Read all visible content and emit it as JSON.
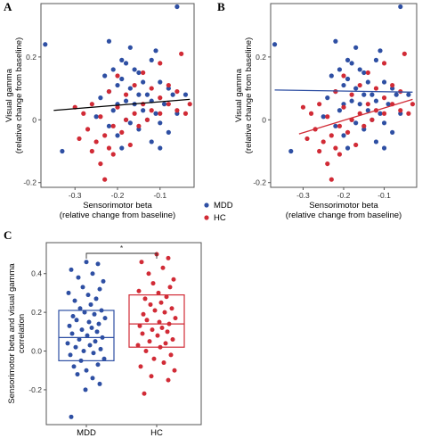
{
  "colors": {
    "MDD": "#2e4fa3",
    "HC": "#d12b36",
    "ink": "#000000",
    "tick": "#333333",
    "axis": "#555555"
  },
  "legend": {
    "items": [
      {
        "key": "MDD",
        "label": "MDD"
      },
      {
        "key": "HC",
        "label": "HC"
      }
    ]
  },
  "significance": "*",
  "chart_data": [
    {
      "id": "A",
      "type": "scatter",
      "panel_label": "A",
      "xlabel": [
        "Sensorimotor beta",
        "(relative change from baseline)"
      ],
      "ylabel": [
        "Visual gamma",
        "(relative change from baseline)"
      ],
      "xlim": [
        -0.38,
        -0.02
      ],
      "ylim": [
        -0.215,
        0.37
      ],
      "xticks": [
        -0.3,
        -0.2,
        -0.1
      ],
      "xtick_labels": [
        "-0.3",
        "-0.2",
        "-0.1"
      ],
      "yticks": [
        -0.2,
        0,
        0.2
      ],
      "ytick_labels": [
        "-0.2",
        "0",
        "0.2"
      ],
      "fit_lines": [
        {
          "name": "All",
          "color": "#000000",
          "x": [
            -0.35,
            -0.03
          ],
          "y": [
            0.03,
            0.065
          ]
        }
      ],
      "series": [
        {
          "name": "MDD",
          "points": [
            [
              -0.37,
              0.24
            ],
            [
              -0.33,
              -0.1
            ],
            [
              -0.06,
              0.36
            ],
            [
              -0.22,
              0.25
            ],
            [
              -0.17,
              0.23
            ],
            [
              -0.19,
              0.19
            ],
            [
              -0.18,
              0.18
            ],
            [
              -0.11,
              0.22
            ],
            [
              -0.12,
              0.19
            ],
            [
              -0.21,
              0.16
            ],
            [
              -0.16,
              0.16
            ],
            [
              -0.15,
              0.15
            ],
            [
              -0.23,
              0.14
            ],
            [
              -0.19,
              0.13
            ],
            [
              -0.14,
              0.12
            ],
            [
              -0.1,
              0.12
            ],
            [
              -0.2,
              0.11
            ],
            [
              -0.17,
              0.1
            ],
            [
              -0.08,
              0.1
            ],
            [
              -0.22,
              0.09
            ],
            [
              -0.15,
              0.08
            ],
            [
              -0.13,
              0.08
            ],
            [
              -0.07,
              0.08
            ],
            [
              -0.04,
              0.08
            ],
            [
              -0.24,
              0.07
            ],
            [
              -0.18,
              0.06
            ],
            [
              -0.12,
              0.06
            ],
            [
              -0.2,
              0.05
            ],
            [
              -0.16,
              0.05
            ],
            [
              -0.09,
              0.05
            ],
            [
              -0.21,
              0.03
            ],
            [
              -0.14,
              0.03
            ],
            [
              -0.11,
              0.02
            ],
            [
              -0.06,
              0.02
            ],
            [
              -0.25,
              0.01
            ],
            [
              -0.18,
              0.0
            ],
            [
              -0.13,
              0.0
            ],
            [
              -0.17,
              -0.01
            ],
            [
              -0.1,
              -0.01
            ],
            [
              -0.22,
              -0.02
            ],
            [
              -0.15,
              -0.03
            ],
            [
              -0.08,
              -0.04
            ],
            [
              -0.2,
              -0.05
            ],
            [
              -0.12,
              -0.07
            ],
            [
              -0.19,
              -0.09
            ],
            [
              -0.1,
              -0.09
            ]
          ]
        },
        {
          "name": "HC",
          "points": [
            [
              -0.05,
              0.21
            ],
            [
              -0.1,
              0.18
            ],
            [
              -0.14,
              0.15
            ],
            [
              -0.2,
              0.14
            ],
            [
              -0.08,
              0.11
            ],
            [
              -0.16,
              0.11
            ],
            [
              -0.12,
              0.1
            ],
            [
              -0.22,
              0.09
            ],
            [
              -0.06,
              0.09
            ],
            [
              -0.18,
              0.08
            ],
            [
              -0.1,
              0.07
            ],
            [
              -0.26,
              0.05
            ],
            [
              -0.14,
              0.05
            ],
            [
              -0.08,
              0.05
            ],
            [
              -0.03,
              0.05
            ],
            [
              -0.3,
              0.04
            ],
            [
              -0.2,
              0.04
            ],
            [
              -0.12,
              0.03
            ],
            [
              -0.06,
              0.03
            ],
            [
              -0.28,
              0.02
            ],
            [
              -0.16,
              0.02
            ],
            [
              -0.1,
              0.02
            ],
            [
              -0.04,
              0.02
            ],
            [
              -0.24,
              0.01
            ],
            [
              -0.18,
              0.0
            ],
            [
              -0.13,
              0.0
            ],
            [
              -0.21,
              -0.02
            ],
            [
              -0.15,
              -0.02
            ],
            [
              -0.27,
              -0.03
            ],
            [
              -0.19,
              -0.04
            ],
            [
              -0.23,
              -0.05
            ],
            [
              -0.29,
              -0.06
            ],
            [
              -0.25,
              -0.07
            ],
            [
              -0.17,
              -0.08
            ],
            [
              -0.22,
              -0.09
            ],
            [
              -0.26,
              -0.1
            ],
            [
              -0.21,
              -0.11
            ],
            [
              -0.24,
              -0.14
            ],
            [
              -0.23,
              -0.19
            ]
          ]
        }
      ]
    },
    {
      "id": "B",
      "type": "scatter",
      "panel_label": "B",
      "xlabel": [
        "Sensorimotor beta",
        "(relative change from baseline)"
      ],
      "ylabel": [
        "Visual gamma",
        "(relative change from baseline)"
      ],
      "xlim": [
        -0.38,
        -0.02
      ],
      "ylim": [
        -0.215,
        0.37
      ],
      "xticks": [
        -0.3,
        -0.2,
        -0.1
      ],
      "xtick_labels": [
        "-0.3",
        "-0.2",
        "-0.1"
      ],
      "yticks": [
        -0.2,
        0,
        0.2
      ],
      "ytick_labels": [
        "-0.2",
        "0",
        "0.2"
      ],
      "fit_lines": [
        {
          "name": "MDD",
          "color": "#2e4fa3",
          "x": [
            -0.37,
            -0.03
          ],
          "y": [
            0.095,
            0.088
          ]
        },
        {
          "name": "HC",
          "color": "#d12b36",
          "x": [
            -0.31,
            -0.03
          ],
          "y": [
            -0.045,
            0.065
          ]
        }
      ],
      "series": [
        {
          "name": "MDD",
          "points": [
            [
              -0.37,
              0.24
            ],
            [
              -0.33,
              -0.1
            ],
            [
              -0.06,
              0.36
            ],
            [
              -0.22,
              0.25
            ],
            [
              -0.17,
              0.23
            ],
            [
              -0.19,
              0.19
            ],
            [
              -0.18,
              0.18
            ],
            [
              -0.11,
              0.22
            ],
            [
              -0.12,
              0.19
            ],
            [
              -0.21,
              0.16
            ],
            [
              -0.16,
              0.16
            ],
            [
              -0.15,
              0.15
            ],
            [
              -0.23,
              0.14
            ],
            [
              -0.19,
              0.13
            ],
            [
              -0.14,
              0.12
            ],
            [
              -0.1,
              0.12
            ],
            [
              -0.2,
              0.11
            ],
            [
              -0.17,
              0.1
            ],
            [
              -0.08,
              0.1
            ],
            [
              -0.22,
              0.09
            ],
            [
              -0.15,
              0.08
            ],
            [
              -0.13,
              0.08
            ],
            [
              -0.07,
              0.08
            ],
            [
              -0.04,
              0.08
            ],
            [
              -0.24,
              0.07
            ],
            [
              -0.18,
              0.06
            ],
            [
              -0.12,
              0.06
            ],
            [
              -0.2,
              0.05
            ],
            [
              -0.16,
              0.05
            ],
            [
              -0.09,
              0.05
            ],
            [
              -0.21,
              0.03
            ],
            [
              -0.14,
              0.03
            ],
            [
              -0.11,
              0.02
            ],
            [
              -0.06,
              0.02
            ],
            [
              -0.25,
              0.01
            ],
            [
              -0.18,
              0.0
            ],
            [
              -0.13,
              0.0
            ],
            [
              -0.17,
              -0.01
            ],
            [
              -0.1,
              -0.01
            ],
            [
              -0.22,
              -0.02
            ],
            [
              -0.15,
              -0.03
            ],
            [
              -0.08,
              -0.04
            ],
            [
              -0.2,
              -0.05
            ],
            [
              -0.12,
              -0.07
            ],
            [
              -0.19,
              -0.09
            ],
            [
              -0.1,
              -0.09
            ]
          ]
        },
        {
          "name": "HC",
          "points": [
            [
              -0.05,
              0.21
            ],
            [
              -0.1,
              0.18
            ],
            [
              -0.14,
              0.15
            ],
            [
              -0.2,
              0.14
            ],
            [
              -0.08,
              0.11
            ],
            [
              -0.16,
              0.11
            ],
            [
              -0.12,
              0.1
            ],
            [
              -0.22,
              0.09
            ],
            [
              -0.06,
              0.09
            ],
            [
              -0.18,
              0.08
            ],
            [
              -0.1,
              0.07
            ],
            [
              -0.26,
              0.05
            ],
            [
              -0.14,
              0.05
            ],
            [
              -0.08,
              0.05
            ],
            [
              -0.03,
              0.05
            ],
            [
              -0.3,
              0.04
            ],
            [
              -0.2,
              0.04
            ],
            [
              -0.12,
              0.03
            ],
            [
              -0.06,
              0.03
            ],
            [
              -0.28,
              0.02
            ],
            [
              -0.16,
              0.02
            ],
            [
              -0.1,
              0.02
            ],
            [
              -0.04,
              0.02
            ],
            [
              -0.24,
              0.01
            ],
            [
              -0.18,
              0.0
            ],
            [
              -0.13,
              0.0
            ],
            [
              -0.21,
              -0.02
            ],
            [
              -0.15,
              -0.02
            ],
            [
              -0.27,
              -0.03
            ],
            [
              -0.19,
              -0.04
            ],
            [
              -0.23,
              -0.05
            ],
            [
              -0.29,
              -0.06
            ],
            [
              -0.25,
              -0.07
            ],
            [
              -0.17,
              -0.08
            ],
            [
              -0.22,
              -0.09
            ],
            [
              -0.26,
              -0.1
            ],
            [
              -0.21,
              -0.11
            ],
            [
              -0.24,
              -0.14
            ],
            [
              -0.23,
              -0.19
            ]
          ]
        }
      ]
    },
    {
      "id": "C",
      "type": "box",
      "panel_label": "C",
      "ylabel": [
        "Sensorimotor beta and visual gamma",
        "correlation"
      ],
      "categories": [
        "MDD",
        "HC"
      ],
      "ylim": [
        -0.38,
        0.56
      ],
      "yticks": [
        -0.2,
        0,
        0.2,
        0.4
      ],
      "ytick_labels": [
        "-0.2",
        "0.0",
        "0.2",
        "0.4"
      ],
      "boxes": [
        {
          "name": "MDD",
          "q1": -0.05,
          "median": 0.07,
          "q3": 0.21
        },
        {
          "name": "HC",
          "q1": 0.02,
          "median": 0.14,
          "q3": 0.29
        }
      ],
      "series": [
        {
          "name": "MDD",
          "values": [
            0.46,
            0.45,
            0.42,
            0.4,
            0.38,
            0.36,
            0.33,
            0.32,
            0.3,
            0.29,
            0.27,
            0.26,
            0.24,
            0.22,
            0.21,
            0.2,
            0.19,
            0.18,
            0.17,
            0.16,
            0.15,
            0.14,
            0.13,
            0.12,
            0.11,
            0.1,
            0.09,
            0.08,
            0.07,
            0.06,
            0.05,
            0.04,
            0.03,
            0.02,
            0.01,
            0.0,
            -0.01,
            -0.02,
            -0.04,
            -0.05,
            -0.07,
            -0.08,
            -0.1,
            -0.12,
            -0.14,
            -0.17,
            -0.2,
            -0.34
          ]
        },
        {
          "name": "HC",
          "values": [
            0.5,
            0.48,
            0.46,
            0.43,
            0.4,
            0.37,
            0.35,
            0.33,
            0.31,
            0.3,
            0.28,
            0.27,
            0.25,
            0.24,
            0.22,
            0.21,
            0.2,
            0.19,
            0.17,
            0.16,
            0.15,
            0.14,
            0.13,
            0.12,
            0.11,
            0.1,
            0.09,
            0.08,
            0.06,
            0.05,
            0.04,
            0.03,
            0.02,
            0.0,
            -0.02,
            -0.04,
            -0.06,
            -0.08,
            -0.1,
            -0.13,
            -0.15,
            -0.22
          ]
        }
      ]
    }
  ]
}
